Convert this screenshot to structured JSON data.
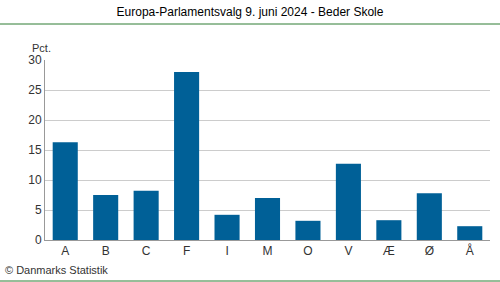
{
  "chart_data": {
    "type": "bar",
    "title": "Europa-Parlamentsvalg 9. juni 2024 - Beder Skole",
    "y_label": "Pct.",
    "annotation": "© Danmarks Statistik",
    "categories": [
      "A",
      "B",
      "C",
      "F",
      "I",
      "M",
      "O",
      "V",
      "Æ",
      "Ø",
      "Å"
    ],
    "values": [
      16.3,
      7.5,
      8.2,
      28.0,
      4.2,
      7.0,
      3.2,
      12.7,
      3.3,
      7.8,
      2.3
    ],
    "color": "#006097",
    "ylim": [
      0,
      30
    ],
    "yticks": [
      0,
      5,
      10,
      15,
      20,
      25,
      30
    ],
    "grid": true
  }
}
